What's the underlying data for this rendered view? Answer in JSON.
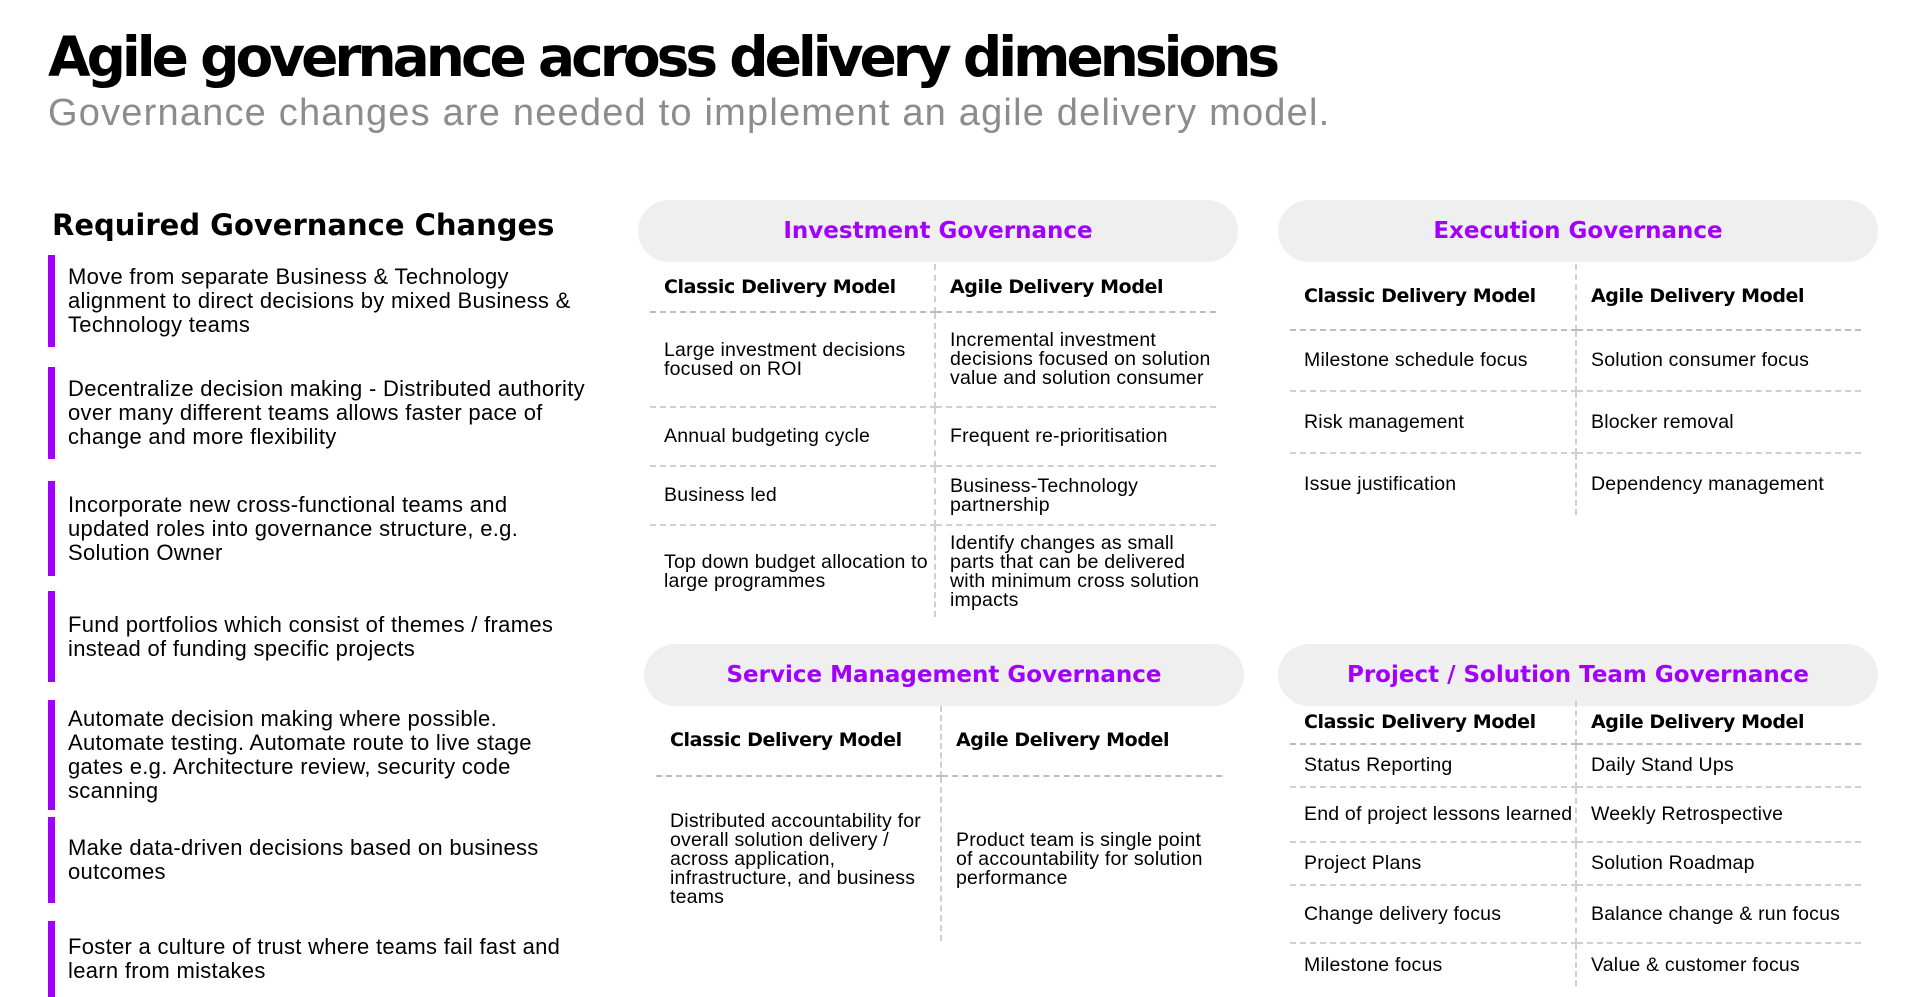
{
  "header": {
    "title": "Agile governance across delivery dimensions",
    "subtitle": "Governance changes are needed to implement an agile delivery model."
  },
  "colors": {
    "accent": "#a100ff",
    "pill_bg": "#efefef",
    "subtitle": "#8c8c8c",
    "divider": "#cfcfcf"
  },
  "required_changes": {
    "heading": "Required Governance Changes",
    "items": [
      "Move from separate Business & Technology alignment to direct decisions by mixed Business & Technology teams",
      "Decentralize decision making - Distributed authority over many different teams allows faster pace of change and more flexibility",
      "Incorporate new cross-functional teams and updated roles into governance structure, e.g. Solution Owner",
      "Fund portfolios which consist of themes / frames instead of funding specific projects",
      "Automate decision making where possible. Automate testing. Automate route to live stage gates e.g. Architecture review, security code scanning",
      "Make data-driven decisions based on business outcomes",
      "Foster a culture of trust where teams fail fast and learn from mistakes"
    ]
  },
  "investment": {
    "title": "Investment Governance",
    "col_classic": "Classic Delivery Model",
    "col_agile": "Agile Delivery Model",
    "rows": [
      {
        "classic": "Large investment decisions focused on ROI",
        "agile": "Incremental investment decisions focused on solution value and solution consumer"
      },
      {
        "classic": "Annual budgeting cycle",
        "agile": "Frequent re-prioritisation"
      },
      {
        "classic": "Business led",
        "agile": "Business-Technology partnership"
      },
      {
        "classic": "Top down budget allocation to large programmes",
        "agile": "Identify changes as small parts that can be delivered with minimum cross solution impacts"
      }
    ]
  },
  "execution": {
    "title": "Execution Governance",
    "col_classic": "Classic Delivery Model",
    "col_agile": "Agile Delivery Model",
    "rows": [
      {
        "classic": "Milestone schedule focus",
        "agile": "Solution consumer focus"
      },
      {
        "classic": "Risk management",
        "agile": "Blocker removal"
      },
      {
        "classic": "Issue justification",
        "agile": "Dependency management"
      }
    ]
  },
  "service": {
    "title": "Service Management Governance",
    "col_classic": "Classic Delivery Model",
    "col_agile": "Agile Delivery Model",
    "rows": [
      {
        "classic": "Distributed accountability for overall solution delivery / across application, infrastructure, and business teams",
        "agile": "Product team is single point of accountability for solution performance"
      }
    ]
  },
  "project": {
    "title": "Project / Solution Team Governance",
    "col_classic": "Classic Delivery Model",
    "col_agile": "Agile Delivery Model",
    "rows": [
      {
        "classic": "Status Reporting",
        "agile": "Daily Stand Ups"
      },
      {
        "classic": "End of project lessons learned",
        "agile": "Weekly Retrospective"
      },
      {
        "classic": "Project Plans",
        "agile": "Solution Roadmap"
      },
      {
        "classic": "Change delivery focus",
        "agile": "Balance change & run focus"
      },
      {
        "classic": "Milestone focus",
        "agile": "Value & customer focus"
      }
    ]
  }
}
